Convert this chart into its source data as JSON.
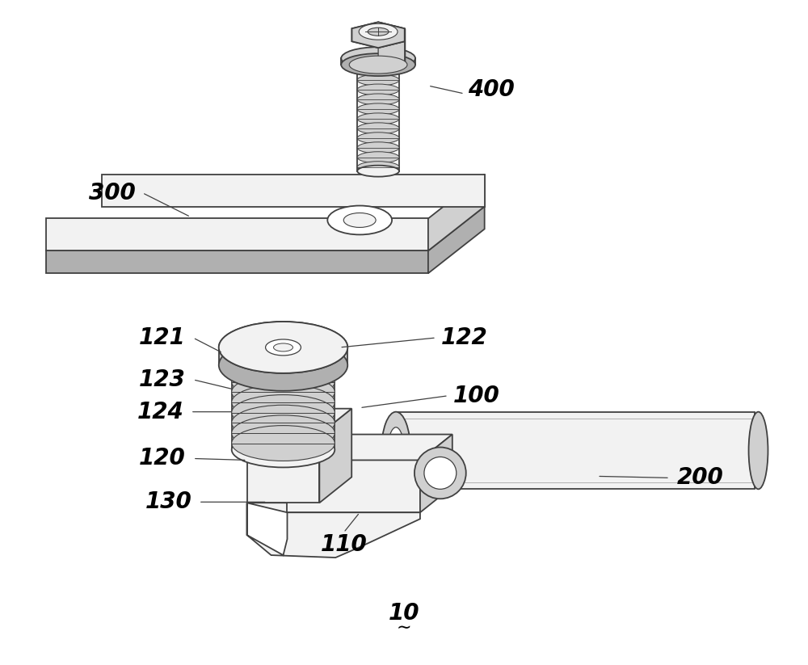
{
  "bg_color": "#ffffff",
  "line_color": "#404040",
  "light_color": "#f2f2f2",
  "mid_color": "#d0d0d0",
  "dark_color": "#b0b0b0",
  "figsize": [
    10.0,
    8.23
  ],
  "dpi": 100,
  "label_fontsize": 20
}
